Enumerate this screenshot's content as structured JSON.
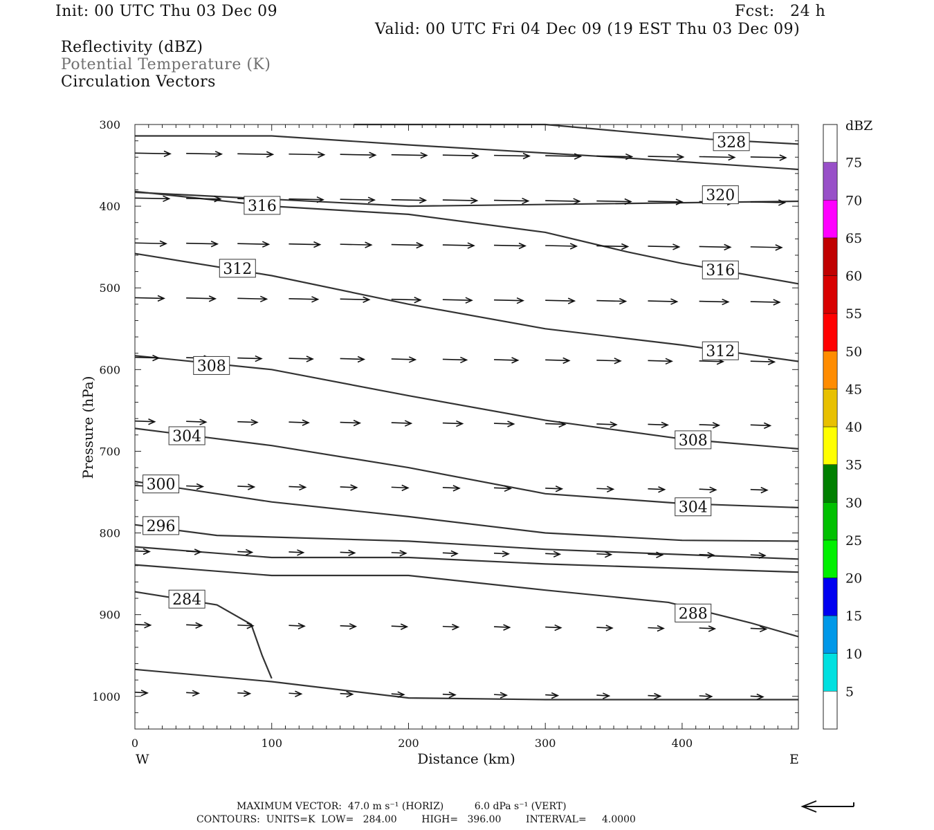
{
  "header": {
    "init": "Init: 00 UTC Thu 03 Dec 09",
    "fcst": "Fcst:   24 h",
    "valid": "Valid: 00 UTC Fri 04 Dec 09 (19 EST Thu 03 Dec 09)",
    "field1": "Reflectivity (dBZ)",
    "field2": "Potential Temperature (K)",
    "field3": "Circulation Vectors"
  },
  "footer": {
    "max_vector": "MAXIMUM VECTOR:  47.0 m s⁻¹ (HORIZ)          6.0 dPa s⁻¹ (VERT)",
    "contours": "CONTOURS:  UNITS=K  LOW=   284.00        HIGH=   396.00        INTERVAL=     4.0000"
  },
  "colorbar": {
    "unit": "dBZ",
    "levels": [
      5,
      10,
      15,
      20,
      25,
      30,
      35,
      40,
      45,
      50,
      55,
      60,
      65,
      70,
      75
    ],
    "colors": [
      "#00e0e0",
      "#0098e8",
      "#0000f0",
      "#00f000",
      "#00c000",
      "#008000",
      "#ffff00",
      "#e8c000",
      "#ff8c00",
      "#ff0000",
      "#d80000",
      "#c00000",
      "#ff00ff",
      "#9850c8"
    ]
  },
  "chart_data": {
    "type": "line",
    "title": "",
    "xlabel": "Distance (km)",
    "ylabel": "Pressure (hPa)",
    "xlim": [
      0,
      485
    ],
    "ylim": [
      1040,
      300
    ],
    "x_ticks": [
      0,
      100,
      200,
      300,
      400
    ],
    "y_ticks": [
      300,
      400,
      500,
      600,
      700,
      800,
      900,
      1000
    ],
    "x_end_labels": {
      "left": "W",
      "right": "E"
    },
    "series": [
      {
        "label": "328",
        "label_at": [
          436,
          321
        ],
        "points": [
          [
            160,
            300
          ],
          [
            300,
            300
          ],
          [
            420,
            318
          ],
          [
            485,
            324
          ]
        ]
      },
      {
        "label": "",
        "label_at": null,
        "points": [
          [
            0,
            314
          ],
          [
            100,
            314
          ],
          [
            200,
            325
          ],
          [
            350,
            340
          ],
          [
            485,
            355
          ]
        ]
      },
      {
        "label": "320",
        "label_at": [
          428,
          386
        ],
        "points": [
          [
            0,
            383
          ],
          [
            200,
            400
          ],
          [
            485,
            394
          ]
        ]
      },
      {
        "label": "316",
        "label_at": [
          93,
          399
        ],
        "points": [
          [
            0,
            382
          ],
          [
            100,
            400
          ],
          [
            200,
            410
          ],
          [
            300,
            432
          ],
          [
            360,
            456
          ],
          [
            400,
            470
          ],
          [
            485,
            495
          ]
        ]
      },
      {
        "label": "316",
        "label_at": [
          428,
          478
        ],
        "points": []
      },
      {
        "label": "312",
        "label_at": [
          75,
          476
        ],
        "points": [
          [
            0,
            458
          ],
          [
            100,
            485
          ],
          [
            200,
            520
          ],
          [
            300,
            550
          ],
          [
            400,
            570
          ],
          [
            485,
            590
          ]
        ]
      },
      {
        "label": "312",
        "label_at": [
          428,
          577
        ],
        "points": []
      },
      {
        "label": "308",
        "label_at": [
          56,
          595
        ],
        "points": [
          [
            0,
            583
          ],
          [
            100,
            600
          ],
          [
            200,
            632
          ],
          [
            300,
            662
          ],
          [
            400,
            685
          ],
          [
            485,
            697
          ]
        ]
      },
      {
        "label": "308",
        "label_at": [
          408,
          686
        ],
        "points": []
      },
      {
        "label": "304",
        "label_at": [
          38,
          681
        ],
        "points": [
          [
            0,
            672
          ],
          [
            100,
            693
          ],
          [
            200,
            720
          ],
          [
            300,
            752
          ],
          [
            400,
            764
          ],
          [
            485,
            769
          ]
        ]
      },
      {
        "label": "304",
        "label_at": [
          408,
          768
        ],
        "points": []
      },
      {
        "label": "300",
        "label_at": [
          19,
          740
        ],
        "points": [
          [
            0,
            737
          ],
          [
            100,
            762
          ],
          [
            200,
            780
          ],
          [
            300,
            800
          ],
          [
            400,
            809
          ],
          [
            485,
            810
          ]
        ]
      },
      {
        "label": "296",
        "label_at": [
          19,
          791
        ],
        "points": [
          [
            0,
            790
          ],
          [
            60,
            803
          ],
          [
            200,
            810
          ],
          [
            300,
            820
          ],
          [
            485,
            832
          ]
        ]
      },
      {
        "label": "",
        "label_at": null,
        "points": [
          [
            0,
            817
          ],
          [
            100,
            830
          ],
          [
            200,
            830
          ],
          [
            300,
            838
          ],
          [
            485,
            848
          ]
        ]
      },
      {
        "label": "288",
        "label_at": [
          408,
          898
        ],
        "points": [
          [
            0,
            839
          ],
          [
            100,
            852
          ],
          [
            200,
            852
          ],
          [
            300,
            870
          ],
          [
            390,
            885
          ],
          [
            450,
            910
          ],
          [
            485,
            927
          ]
        ]
      },
      {
        "label": "284",
        "label_at": [
          38,
          881
        ],
        "points": [
          [
            0,
            872
          ],
          [
            60,
            888
          ],
          [
            85,
            912
          ],
          [
            93,
            950
          ],
          [
            100,
            978
          ]
        ]
      },
      {
        "label": "",
        "label_at": null,
        "points": [
          [
            0,
            967
          ],
          [
            100,
            982
          ],
          [
            200,
            1002
          ],
          [
            300,
            1004
          ],
          [
            485,
            1004
          ]
        ]
      }
    ],
    "vectors": {
      "description": "Circulation vectors (eastward flow, weakening toward surface)",
      "levels": [
        {
          "p": 335,
          "length": 30
        },
        {
          "p": 390,
          "length": 29
        },
        {
          "p": 445,
          "length": 26
        },
        {
          "p": 512,
          "length": 24
        },
        {
          "p": 585,
          "length": 19
        },
        {
          "p": 663,
          "length": 15
        },
        {
          "p": 742,
          "length": 12
        },
        {
          "p": 822,
          "length": 10
        },
        {
          "p": 912,
          "length": 11
        },
        {
          "p": 995,
          "length": 8
        }
      ]
    }
  }
}
